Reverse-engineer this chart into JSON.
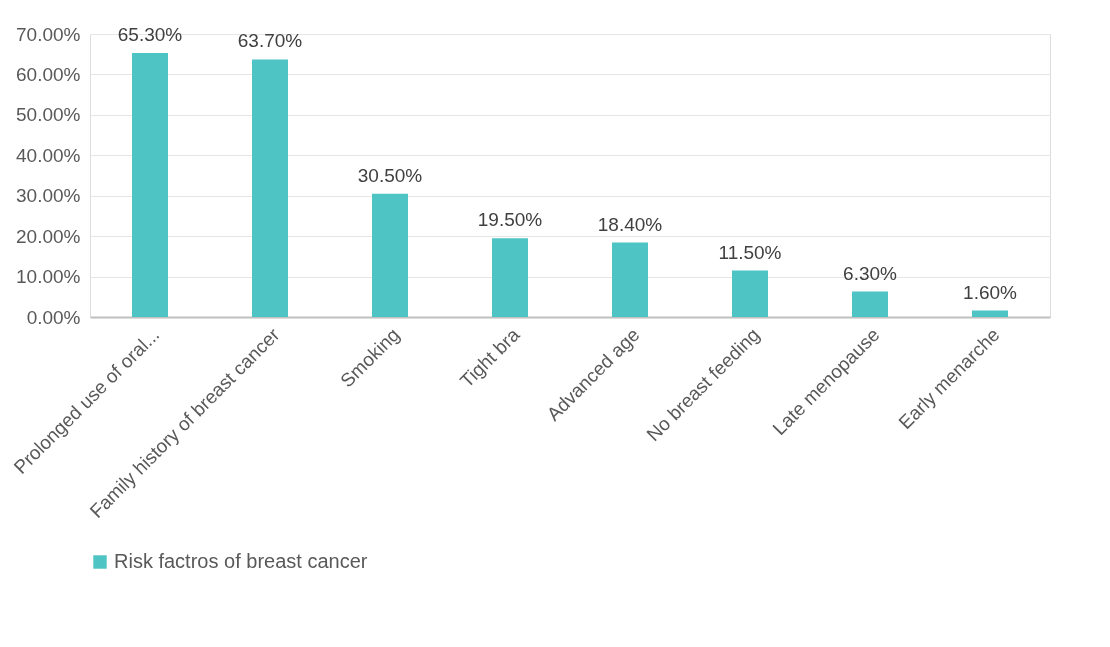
{
  "chart_data": {
    "type": "bar",
    "categories": [
      "Prolonged use of oral...",
      "Family history of breast cancer",
      "Smoking",
      "Tight bra",
      "Advanced age",
      "No breast feeding",
      "Late menopause",
      "Early menarche"
    ],
    "series": [
      {
        "name": "Risk factros of breast cancer",
        "color": "#4fc4c4",
        "values": [
          65.3,
          63.7,
          30.5,
          19.5,
          18.4,
          11.5,
          6.3,
          1.6
        ],
        "value_labels": [
          "65.30%",
          "63.70%",
          "30.50%",
          "19.50%",
          "18.40%",
          "11.50%",
          "6.30%",
          "1.60%"
        ]
      }
    ],
    "ylim": [
      0,
      70
    ],
    "yticks": [
      {
        "value": 0,
        "label": "0.00%"
      },
      {
        "value": 10,
        "label": "10.00%"
      },
      {
        "value": 20,
        "label": "20.00%"
      },
      {
        "value": 30,
        "label": "30.00%"
      },
      {
        "value": 40,
        "label": "40.00%"
      },
      {
        "value": 50,
        "label": "50.00%"
      },
      {
        "value": 60,
        "label": "60.00%"
      },
      {
        "value": 70,
        "label": "70.00%"
      }
    ],
    "grid": "y",
    "legend": "bottom"
  }
}
